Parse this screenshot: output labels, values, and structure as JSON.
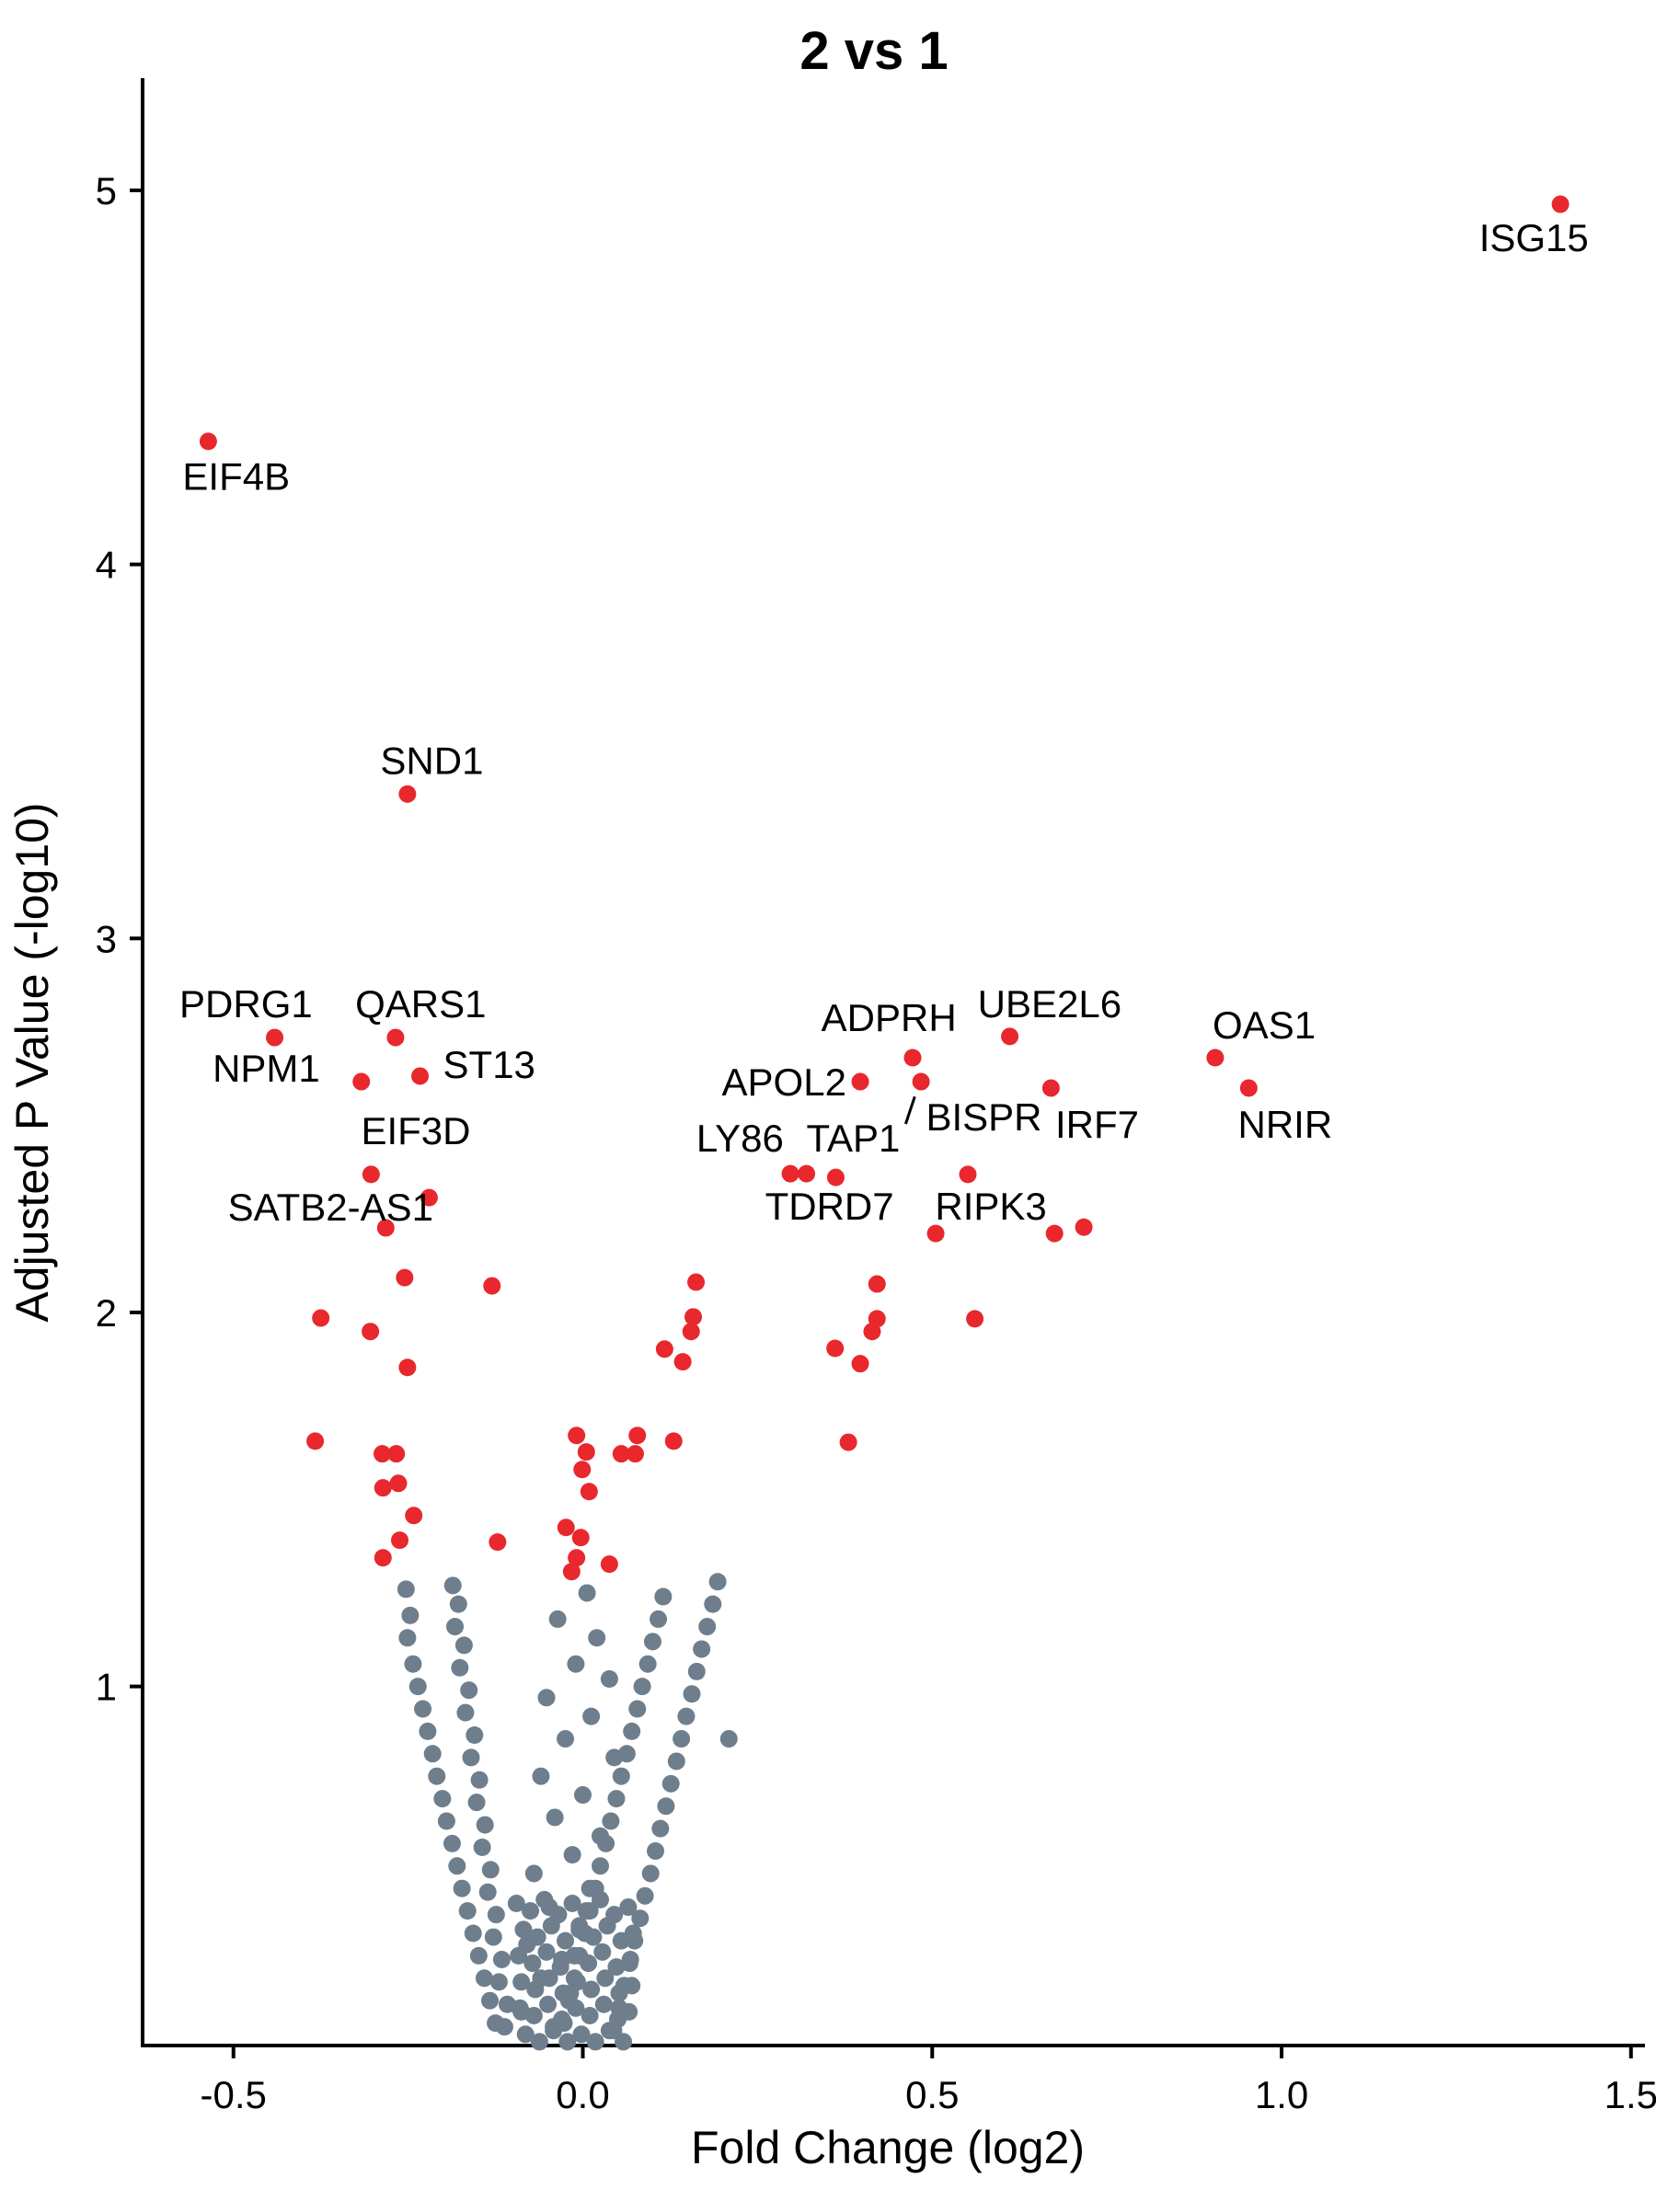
{
  "chart_data": {
    "type": "scatter",
    "title": "2 vs 1",
    "xlabel": "Fold Change (log2)",
    "ylabel": "Adjusted P Value (-log10)",
    "xlim": [
      -0.63,
      1.52
    ],
    "ylim": [
      0.04,
      5.3
    ],
    "x_ticks": [
      -0.5,
      0.0,
      0.5,
      1.0,
      1.5
    ],
    "x_tick_labels": [
      "-0.5",
      "0.0",
      "0.5",
      "1.0",
      "1.5"
    ],
    "y_ticks": [
      1,
      2,
      3,
      4,
      5
    ],
    "y_tick_labels": [
      "1",
      "2",
      "3",
      "4",
      "5"
    ],
    "grid": false,
    "legend": "none",
    "colors": {
      "significant": "#E8282C",
      "nonsignificant": "#6E7E8C",
      "axis": "#000000"
    },
    "significance_threshold_p": 1.3,
    "labeled_genes": [
      {
        "name": "ISG15",
        "x": 1.399,
        "y": 4.963,
        "lx": 1.361,
        "ly": 4.875
      },
      {
        "name": "EIF4B",
        "x": -0.536,
        "y": 4.329,
        "lx": -0.496,
        "ly": 4.236
      },
      {
        "name": "SND1",
        "x": -0.251,
        "y": 3.386,
        "lx": -0.216,
        "ly": 3.477
      },
      {
        "name": "PDRG1",
        "x": -0.441,
        "y": 2.735,
        "lx": -0.482,
        "ly": 2.826
      },
      {
        "name": "QARS1",
        "x": -0.268,
        "y": 2.735,
        "lx": -0.232,
        "ly": 2.826
      },
      {
        "name": "NPM1",
        "x": -0.317,
        "y": 2.617,
        "lx": -0.453,
        "ly": 2.654
      },
      {
        "name": "ST13",
        "x": -0.233,
        "y": 2.632,
        "lx": -0.134,
        "ly": 2.664
      },
      {
        "name": "EIF3D",
        "x": -0.303,
        "y": 2.369,
        "lx": -0.239,
        "ly": 2.487
      },
      {
        "name": "SATB2-AS1",
        "x": -0.282,
        "y": 2.226,
        "lx": -0.361,
        "ly": 2.283
      },
      {
        "name": "ADPRH",
        "x": 0.472,
        "y": 2.681,
        "lx": 0.438,
        "ly": 2.789
      },
      {
        "name": "UBE2L6",
        "x": 0.611,
        "y": 2.738,
        "lx": 0.668,
        "ly": 2.826
      },
      {
        "name": "OAS1",
        "x": 0.905,
        "y": 2.681,
        "lx": 0.975,
        "ly": 2.769
      },
      {
        "name": "APOL2",
        "x": 0.397,
        "y": 2.617,
        "lx": 0.288,
        "ly": 2.617
      },
      {
        "name": "BISPR",
        "x": 0.484,
        "y": 2.617,
        "lx": 0.574,
        "ly": 2.524,
        "leader": {
          "x1": 0.475,
          "y1": 2.577,
          "x2": 0.462,
          "y2": 2.504
        }
      },
      {
        "name": "IRF7",
        "x": 0.67,
        "y": 2.6,
        "lx": 0.736,
        "ly": 2.504
      },
      {
        "name": "NRIR",
        "x": 0.953,
        "y": 2.6,
        "lx": 1.005,
        "ly": 2.504
      },
      {
        "name": "LY86",
        "x": 0.297,
        "y": 2.371,
        "lx": 0.225,
        "ly": 2.467
      },
      {
        "name": "TAP1",
        "x": 0.362,
        "y": 2.361,
        "lx": 0.387,
        "ly": 2.467
      },
      {
        "name": "TDRD7",
        "x": 0.505,
        "y": 2.211,
        "lx": 0.353,
        "ly": 2.285
      },
      {
        "name": "RIPK3",
        "x": 0.551,
        "y": 2.369,
        "lx": 0.584,
        "ly": 2.285
      }
    ],
    "significant_points": [
      [
        -0.22,
        2.307
      ],
      [
        0.32,
        2.371
      ],
      [
        0.675,
        2.211
      ],
      [
        0.717,
        2.228
      ],
      [
        0.421,
        2.076
      ],
      [
        -0.255,
        2.093
      ],
      [
        -0.13,
        2.071
      ],
      [
        0.162,
        2.081
      ],
      [
        -0.375,
        1.985
      ],
      [
        -0.304,
        1.949
      ],
      [
        0.158,
        1.988
      ],
      [
        0.155,
        1.949
      ],
      [
        0.117,
        1.902
      ],
      [
        0.143,
        1.868
      ],
      [
        -0.251,
        1.853
      ],
      [
        0.421,
        1.983
      ],
      [
        0.414,
        1.949
      ],
      [
        0.361,
        1.904
      ],
      [
        0.397,
        1.863
      ],
      [
        0.561,
        1.983
      ],
      [
        0.38,
        1.653
      ],
      [
        -0.383,
        1.656
      ],
      [
        -0.287,
        1.622
      ],
      [
        -0.267,
        1.622
      ],
      [
        -0.009,
        1.671
      ],
      [
        0.005,
        1.627
      ],
      [
        0.078,
        1.671
      ],
      [
        0.055,
        1.622
      ],
      [
        0.075,
        1.622
      ],
      [
        0.13,
        1.656
      ],
      [
        -0.001,
        1.58
      ],
      [
        -0.286,
        1.531
      ],
      [
        -0.264,
        1.543
      ],
      [
        0.009,
        1.521
      ],
      [
        -0.242,
        1.457
      ],
      [
        -0.262,
        1.391
      ],
      [
        -0.122,
        1.386
      ],
      [
        -0.024,
        1.425
      ],
      [
        -0.003,
        1.398
      ],
      [
        -0.286,
        1.344
      ],
      [
        -0.009,
        1.344
      ],
      [
        0.038,
        1.327
      ],
      [
        -0.016,
        1.307
      ]
    ],
    "nonsignificant_points": [
      [
        -0.253,
        1.26
      ],
      [
        -0.247,
        1.19
      ],
      [
        -0.251,
        1.13
      ],
      [
        -0.243,
        1.06
      ],
      [
        -0.236,
        1.0
      ],
      [
        -0.229,
        0.94
      ],
      [
        -0.222,
        0.88
      ],
      [
        -0.215,
        0.82
      ],
      [
        -0.209,
        0.76
      ],
      [
        -0.201,
        0.7
      ],
      [
        -0.195,
        0.64
      ],
      [
        -0.187,
        0.58
      ],
      [
        -0.18,
        0.52
      ],
      [
        -0.173,
        0.46
      ],
      [
        -0.165,
        0.4
      ],
      [
        -0.157,
        0.34
      ],
      [
        -0.149,
        0.28
      ],
      [
        -0.141,
        0.22
      ],
      [
        -0.133,
        0.16
      ],
      [
        -0.125,
        0.1
      ],
      [
        -0.186,
        1.27
      ],
      [
        -0.178,
        1.22
      ],
      [
        -0.183,
        1.16
      ],
      [
        -0.17,
        1.11
      ],
      [
        -0.176,
        1.05
      ],
      [
        -0.163,
        0.99
      ],
      [
        -0.168,
        0.93
      ],
      [
        -0.155,
        0.87
      ],
      [
        -0.16,
        0.81
      ],
      [
        -0.148,
        0.75
      ],
      [
        -0.152,
        0.69
      ],
      [
        -0.14,
        0.63
      ],
      [
        -0.144,
        0.57
      ],
      [
        -0.132,
        0.51
      ],
      [
        -0.136,
        0.45
      ],
      [
        -0.124,
        0.39
      ],
      [
        -0.128,
        0.33
      ],
      [
        -0.116,
        0.27
      ],
      [
        -0.12,
        0.21
      ],
      [
        -0.108,
        0.15
      ],
      [
        -0.112,
        0.09
      ],
      [
        0.006,
        1.25
      ],
      [
        -0.036,
        1.18
      ],
      [
        0.02,
        1.13
      ],
      [
        -0.01,
        1.06
      ],
      [
        0.038,
        1.02
      ],
      [
        -0.052,
        0.97
      ],
      [
        0.012,
        0.92
      ],
      [
        -0.025,
        0.86
      ],
      [
        0.045,
        0.81
      ],
      [
        -0.06,
        0.76
      ],
      [
        0.0,
        0.71
      ],
      [
        -0.04,
        0.65
      ],
      [
        0.025,
        0.6
      ],
      [
        -0.015,
        0.55
      ],
      [
        -0.07,
        0.5
      ],
      [
        0.01,
        0.46
      ],
      [
        -0.048,
        0.41
      ],
      [
        -0.005,
        0.36
      ],
      [
        -0.08,
        0.31
      ],
      [
        -0.03,
        0.27
      ],
      [
        -0.06,
        0.22
      ],
      [
        -0.018,
        0.18
      ],
      [
        -0.088,
        0.13
      ],
      [
        -0.042,
        0.09
      ],
      [
        0.193,
        1.28
      ],
      [
        0.186,
        1.22
      ],
      [
        0.178,
        1.16
      ],
      [
        0.17,
        1.1
      ],
      [
        0.163,
        1.04
      ],
      [
        0.156,
        0.98
      ],
      [
        0.148,
        0.92
      ],
      [
        0.141,
        0.86
      ],
      [
        0.134,
        0.8
      ],
      [
        0.126,
        0.74
      ],
      [
        0.119,
        0.68
      ],
      [
        0.111,
        0.62
      ],
      [
        0.104,
        0.56
      ],
      [
        0.097,
        0.5
      ],
      [
        0.089,
        0.44
      ],
      [
        0.082,
        0.38
      ],
      [
        0.074,
        0.32
      ],
      [
        0.067,
        0.26
      ],
      [
        0.059,
        0.2
      ],
      [
        0.052,
        0.14
      ],
      [
        0.044,
        0.08
      ],
      [
        0.209,
        0.86
      ],
      [
        0.115,
        1.24
      ],
      [
        0.108,
        1.18
      ],
      [
        0.1,
        1.12
      ],
      [
        0.093,
        1.06
      ],
      [
        0.085,
        1.0
      ],
      [
        0.078,
        0.94
      ],
      [
        0.07,
        0.88
      ],
      [
        0.063,
        0.82
      ],
      [
        0.055,
        0.76
      ],
      [
        0.048,
        0.7
      ],
      [
        0.04,
        0.64
      ],
      [
        0.033,
        0.58
      ],
      [
        0.025,
        0.52
      ],
      [
        0.018,
        0.46
      ],
      [
        0.01,
        0.4
      ],
      [
        0.003,
        0.34
      ],
      [
        -0.005,
        0.28
      ],
      [
        -0.012,
        0.22
      ],
      [
        -0.02,
        0.16
      ],
      [
        -0.027,
        0.1
      ],
      [
        -0.095,
        0.42
      ],
      [
        -0.075,
        0.4
      ],
      [
        -0.055,
        0.43
      ],
      [
        -0.035,
        0.39
      ],
      [
        -0.015,
        0.42
      ],
      [
        0.005,
        0.4
      ],
      [
        0.025,
        0.43
      ],
      [
        0.045,
        0.39
      ],
      [
        0.065,
        0.41
      ],
      [
        -0.085,
        0.35
      ],
      [
        -0.065,
        0.33
      ],
      [
        -0.045,
        0.36
      ],
      [
        -0.025,
        0.32
      ],
      [
        -0.005,
        0.35
      ],
      [
        0.015,
        0.33
      ],
      [
        0.035,
        0.36
      ],
      [
        0.055,
        0.32
      ],
      [
        0.072,
        0.34
      ],
      [
        -0.092,
        0.28
      ],
      [
        -0.072,
        0.26
      ],
      [
        -0.052,
        0.29
      ],
      [
        -0.032,
        0.25
      ],
      [
        -0.012,
        0.28
      ],
      [
        0.008,
        0.26
      ],
      [
        0.028,
        0.29
      ],
      [
        0.048,
        0.25
      ],
      [
        0.068,
        0.27
      ],
      [
        -0.088,
        0.21
      ],
      [
        -0.068,
        0.19
      ],
      [
        -0.048,
        0.22
      ],
      [
        -0.028,
        0.18
      ],
      [
        -0.008,
        0.21
      ],
      [
        0.012,
        0.19
      ],
      [
        0.032,
        0.22
      ],
      [
        0.052,
        0.18
      ],
      [
        0.07,
        0.2
      ],
      [
        -0.09,
        0.14
      ],
      [
        -0.07,
        0.12
      ],
      [
        -0.05,
        0.15
      ],
      [
        -0.03,
        0.11
      ],
      [
        -0.01,
        0.14
      ],
      [
        0.01,
        0.12
      ],
      [
        0.03,
        0.15
      ],
      [
        0.05,
        0.11
      ],
      [
        0.066,
        0.13
      ],
      [
        -0.082,
        0.07
      ],
      [
        -0.062,
        0.05
      ],
      [
        -0.042,
        0.08
      ],
      [
        -0.022,
        0.05
      ],
      [
        -0.002,
        0.07
      ],
      [
        0.018,
        0.05
      ],
      [
        0.038,
        0.08
      ],
      [
        0.058,
        0.05
      ]
    ]
  }
}
